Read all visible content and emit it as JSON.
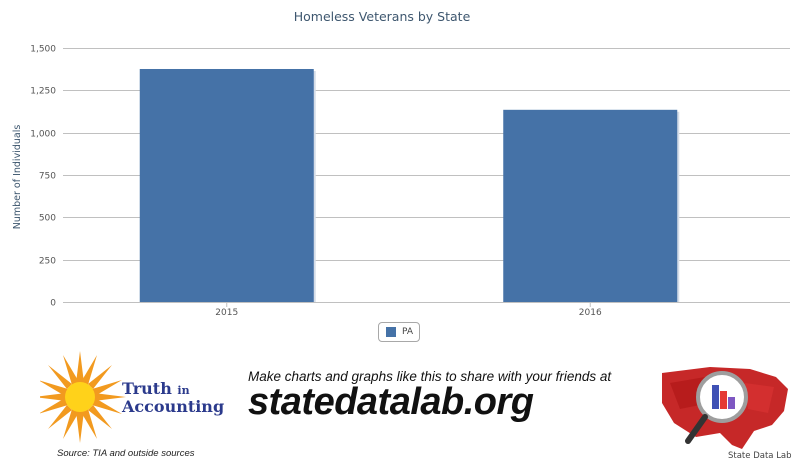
{
  "chart_data": {
    "type": "bar",
    "title": "Homeless Veterans by State",
    "ylabel": "Number of Individuals",
    "xlabel": "",
    "categories": [
      "2015",
      "2016"
    ],
    "series": [
      {
        "name": "PA",
        "values": [
          1376,
          1135
        ],
        "color": "#4572a7"
      }
    ],
    "ylim": [
      0,
      1500
    ],
    "yticks": [
      0,
      250,
      500,
      750,
      1000,
      1250,
      1500
    ],
    "ytick_labels": [
      "0",
      "250",
      "500",
      "750",
      "1,000",
      "1,250",
      "1,500"
    ],
    "grid": true,
    "legend": "bottom-center"
  },
  "legend": {
    "label": "PA",
    "color": "#4572a7"
  },
  "footer": {
    "tia_word1": "Truth",
    "tia_word2": "in",
    "tia_word3": "Accounting",
    "source": "Source: TIA and outside sources",
    "promo_line": "Make charts and graphs like this to share with your friends at",
    "promo_url": "statedatalab.org",
    "sdl_label": "State Data Lab"
  }
}
